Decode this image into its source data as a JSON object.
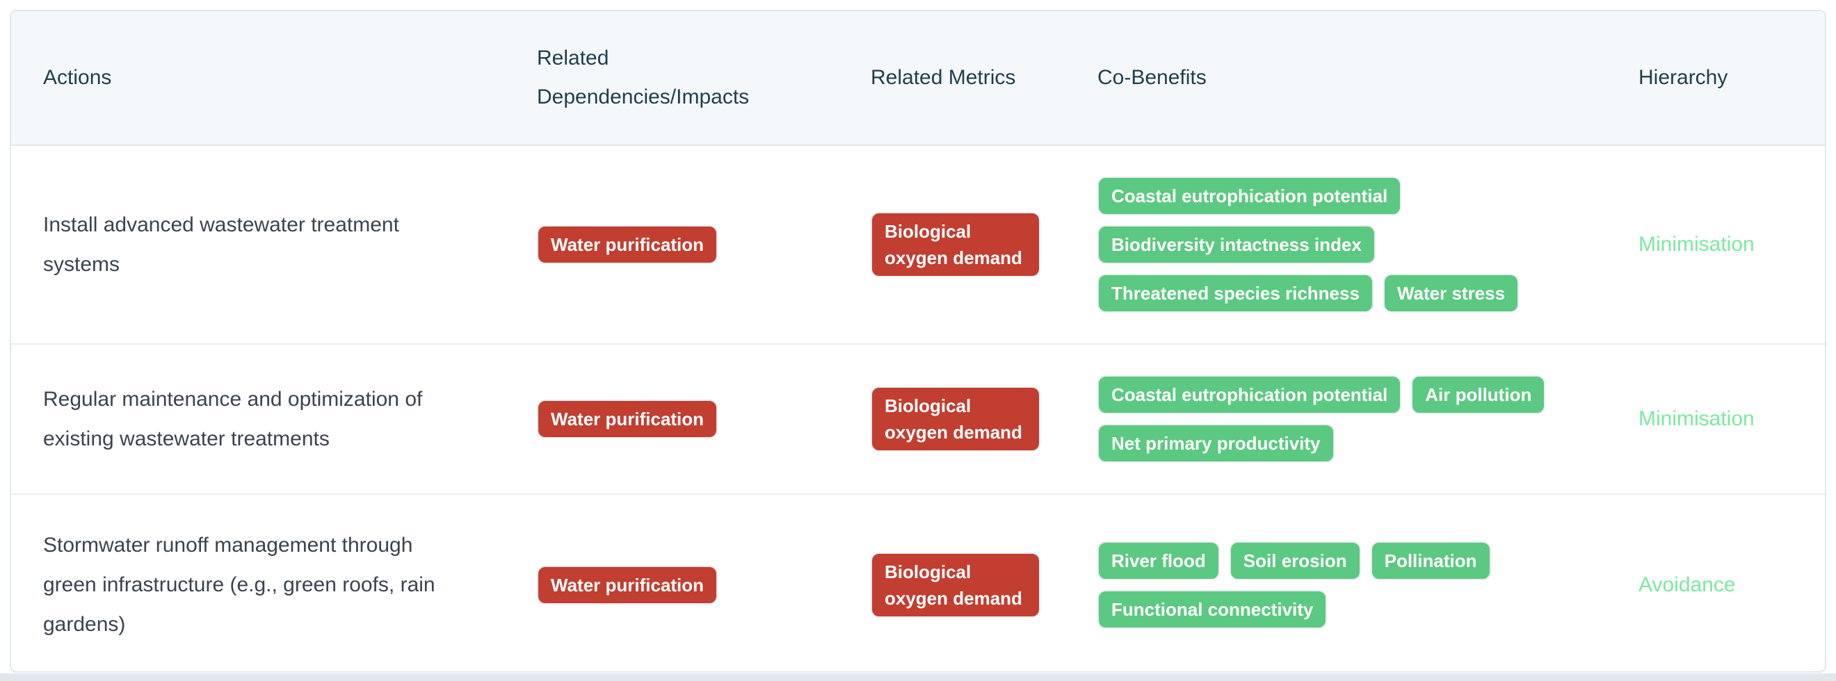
{
  "table": {
    "columns": [
      {
        "key": "actions",
        "label": "Actions"
      },
      {
        "key": "dependencies",
        "label": "Related Dependencies/Impacts"
      },
      {
        "key": "metrics",
        "label": "Related Metrics"
      },
      {
        "key": "co_benefits",
        "label": "Co-Benefits"
      },
      {
        "key": "hierarchy",
        "label": "Hierarchy"
      }
    ],
    "rows": [
      {
        "action": "Install advanced wastewater treatment systems",
        "dependencies": [
          "Water purification"
        ],
        "metrics": [
          "Biological oxygen demand"
        ],
        "co_benefits": [
          "Coastal eutrophication potential",
          "Biodiversity intactness index",
          "Threatened species richness",
          "Water stress"
        ],
        "hierarchy": "Minimisation"
      },
      {
        "action": "Regular maintenance and optimization of existing wastewater treatments",
        "dependencies": [
          "Water purification"
        ],
        "metrics": [
          "Biological oxygen demand"
        ],
        "co_benefits": [
          "Coastal eutrophication potential",
          "Air pollution",
          "Net primary productivity"
        ],
        "hierarchy": "Minimisation"
      },
      {
        "action": "Stormwater runoff management through green infrastructure (e.g., green roofs, rain gardens)",
        "dependencies": [
          "Water purification"
        ],
        "metrics": [
          "Biological oxygen demand"
        ],
        "co_benefits": [
          "River flood",
          "Soil erosion",
          "Pollination",
          "Functional connectivity"
        ],
        "hierarchy": "Avoidance"
      }
    ]
  },
  "colors": {
    "negative_tag": "#c13e31",
    "positive_tag": "#5bc981",
    "hierarchy_text": "#7be8a2",
    "header_text": "#1e3e4c",
    "body_text": "#3b4351",
    "header_background": "#f5f8fb",
    "border": "#e2e7ee"
  }
}
